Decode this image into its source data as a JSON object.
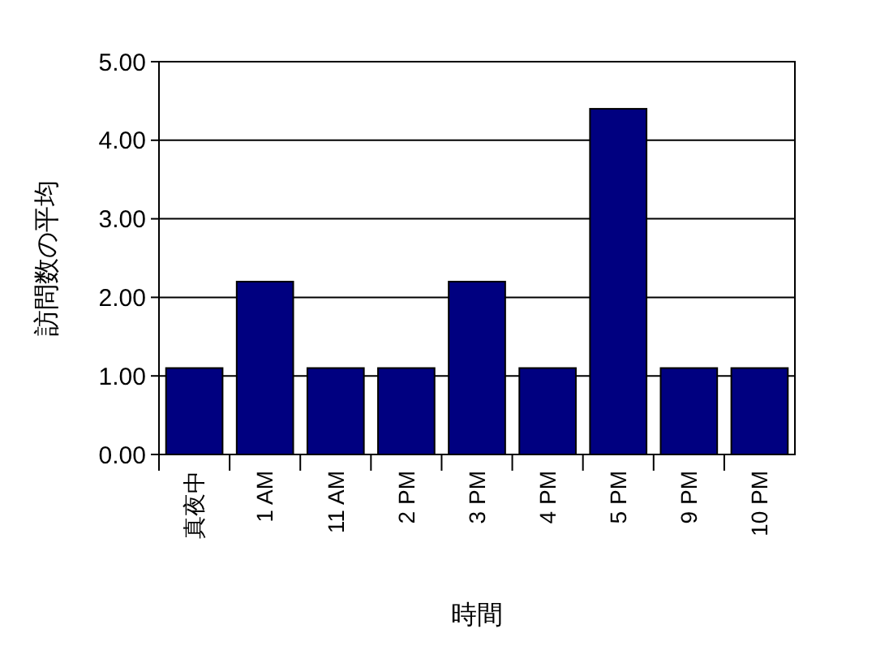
{
  "chart_data": {
    "type": "bar",
    "xlabel": "時間",
    "ylabel": "訪問数の平均",
    "categories": [
      "真夜中",
      "1 AM",
      "11 AM",
      "2 PM",
      "3 PM",
      "4 PM",
      "5 PM",
      "9 PM",
      "10 PM"
    ],
    "values": [
      1.1,
      2.2,
      1.1,
      1.1,
      2.2,
      1.1,
      4.4,
      1.1,
      1.1
    ],
    "color": "#000080",
    "ylim": [
      0,
      5
    ],
    "yticks": [
      {
        "value": 0,
        "label": "0.00"
      },
      {
        "value": 1,
        "label": "1.00"
      },
      {
        "value": 2,
        "label": "2.00"
      },
      {
        "value": 3,
        "label": "3.00"
      },
      {
        "value": 4,
        "label": "4.00"
      },
      {
        "value": 5,
        "label": "5.00"
      }
    ],
    "grid": "y"
  }
}
